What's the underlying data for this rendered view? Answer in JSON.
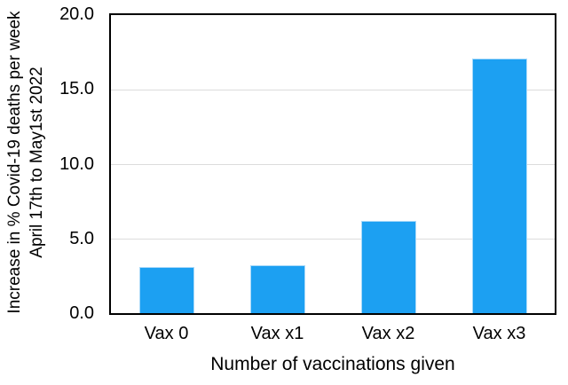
{
  "chart_data": {
    "type": "bar",
    "title": "",
    "categories": [
      "Vax 0",
      "Vax x1",
      "Vax x2",
      "Vax x3"
    ],
    "values": [
      3.1,
      3.2,
      6.2,
      17.1
    ],
    "xlabel": "Number of vaccinations given",
    "ylabel_lines": [
      "Increase in % Covid-19 deaths per week",
      "April 17th to May1st 2022"
    ],
    "ylim": [
      0,
      20
    ],
    "yticks": [
      0,
      5,
      10,
      15,
      20
    ],
    "ytick_labels": [
      "0.0",
      "5.0",
      "10.0",
      "15.0",
      "20.0"
    ],
    "grid": true,
    "legend_position": "none",
    "colors": {
      "bar": "#1ca0f2",
      "bar_edge": "#a9d9f9",
      "grid": "#dcdcdc",
      "axis": "#000000",
      "text": "#000000",
      "background": "#ffffff"
    }
  }
}
